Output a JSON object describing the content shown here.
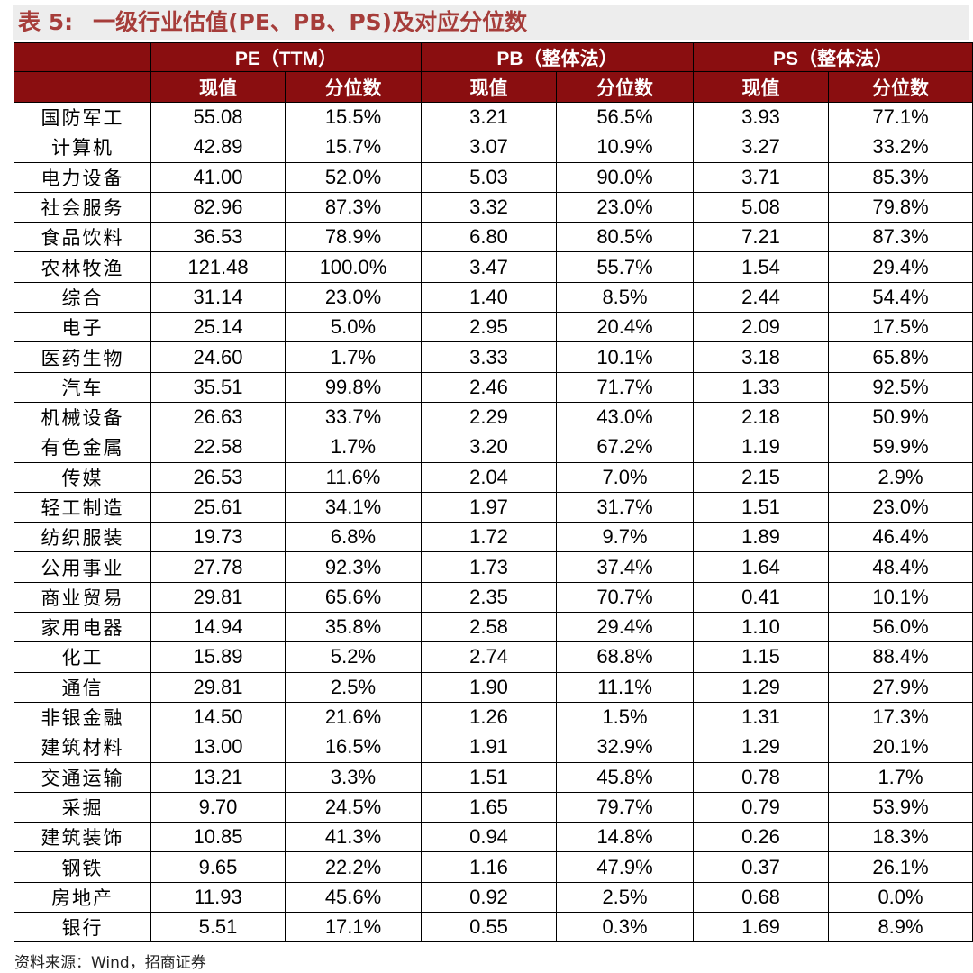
{
  "title": {
    "number": "表 5:",
    "text": "一级行业估值(PE、PB、PS)及对应分位数"
  },
  "headers": {
    "groups": [
      "PE（TTM）",
      "PB（整体法）",
      "PS（整体法）"
    ],
    "sub": [
      "现值",
      "分位数",
      "现值",
      "分位数",
      "现值",
      "分位数"
    ]
  },
  "rows": [
    {
      "industry": "国防军工",
      "pe": "55.08",
      "pe_pct": "15.5%",
      "pb": "3.21",
      "pb_pct": "56.5%",
      "ps": "3.93",
      "ps_pct": "77.1%"
    },
    {
      "industry": "计算机",
      "pe": "42.89",
      "pe_pct": "15.7%",
      "pb": "3.07",
      "pb_pct": "10.9%",
      "ps": "3.27",
      "ps_pct": "33.2%"
    },
    {
      "industry": "电力设备",
      "pe": "41.00",
      "pe_pct": "52.0%",
      "pb": "5.03",
      "pb_pct": "90.0%",
      "ps": "3.71",
      "ps_pct": "85.3%"
    },
    {
      "industry": "社会服务",
      "pe": "82.96",
      "pe_pct": "87.3%",
      "pb": "3.32",
      "pb_pct": "23.0%",
      "ps": "5.08",
      "ps_pct": "79.8%"
    },
    {
      "industry": "食品饮料",
      "pe": "36.53",
      "pe_pct": "78.9%",
      "pb": "6.80",
      "pb_pct": "80.5%",
      "ps": "7.21",
      "ps_pct": "87.3%"
    },
    {
      "industry": "农林牧渔",
      "pe": "121.48",
      "pe_pct": "100.0%",
      "pb": "3.47",
      "pb_pct": "55.7%",
      "ps": "1.54",
      "ps_pct": "29.4%"
    },
    {
      "industry": "综合",
      "pe": "31.14",
      "pe_pct": "23.0%",
      "pb": "1.40",
      "pb_pct": "8.5%",
      "ps": "2.44",
      "ps_pct": "54.4%"
    },
    {
      "industry": "电子",
      "pe": "25.14",
      "pe_pct": "5.0%",
      "pb": "2.95",
      "pb_pct": "20.4%",
      "ps": "2.09",
      "ps_pct": "17.5%"
    },
    {
      "industry": "医药生物",
      "pe": "24.60",
      "pe_pct": "1.7%",
      "pb": "3.33",
      "pb_pct": "10.1%",
      "ps": "3.18",
      "ps_pct": "65.8%"
    },
    {
      "industry": "汽车",
      "pe": "35.51",
      "pe_pct": "99.8%",
      "pb": "2.46",
      "pb_pct": "71.7%",
      "ps": "1.33",
      "ps_pct": "92.5%"
    },
    {
      "industry": "机械设备",
      "pe": "26.63",
      "pe_pct": "33.7%",
      "pb": "2.29",
      "pb_pct": "43.0%",
      "ps": "2.18",
      "ps_pct": "50.9%"
    },
    {
      "industry": "有色金属",
      "pe": "22.58",
      "pe_pct": "1.7%",
      "pb": "3.20",
      "pb_pct": "67.2%",
      "ps": "1.19",
      "ps_pct": "59.9%"
    },
    {
      "industry": "传媒",
      "pe": "26.53",
      "pe_pct": "11.6%",
      "pb": "2.04",
      "pb_pct": "7.0%",
      "ps": "2.15",
      "ps_pct": "2.9%"
    },
    {
      "industry": "轻工制造",
      "pe": "25.61",
      "pe_pct": "34.1%",
      "pb": "1.97",
      "pb_pct": "31.7%",
      "ps": "1.51",
      "ps_pct": "23.0%"
    },
    {
      "industry": "纺织服装",
      "pe": "19.73",
      "pe_pct": "6.8%",
      "pb": "1.72",
      "pb_pct": "9.7%",
      "ps": "1.89",
      "ps_pct": "46.4%"
    },
    {
      "industry": "公用事业",
      "pe": "27.78",
      "pe_pct": "92.3%",
      "pb": "1.73",
      "pb_pct": "37.4%",
      "ps": "1.64",
      "ps_pct": "48.4%"
    },
    {
      "industry": "商业贸易",
      "pe": "29.81",
      "pe_pct": "65.6%",
      "pb": "2.35",
      "pb_pct": "70.7%",
      "ps": "0.41",
      "ps_pct": "10.1%"
    },
    {
      "industry": "家用电器",
      "pe": "14.94",
      "pe_pct": "35.8%",
      "pb": "2.58",
      "pb_pct": "29.4%",
      "ps": "1.10",
      "ps_pct": "56.0%"
    },
    {
      "industry": "化工",
      "pe": "15.89",
      "pe_pct": "5.2%",
      "pb": "2.74",
      "pb_pct": "68.8%",
      "ps": "1.15",
      "ps_pct": "88.4%"
    },
    {
      "industry": "通信",
      "pe": "29.81",
      "pe_pct": "2.5%",
      "pb": "1.90",
      "pb_pct": "11.1%",
      "ps": "1.29",
      "ps_pct": "27.9%"
    },
    {
      "industry": "非银金融",
      "pe": "14.50",
      "pe_pct": "21.6%",
      "pb": "1.26",
      "pb_pct": "1.5%",
      "ps": "1.31",
      "ps_pct": "17.3%"
    },
    {
      "industry": "建筑材料",
      "pe": "13.00",
      "pe_pct": "16.5%",
      "pb": "1.91",
      "pb_pct": "32.9%",
      "ps": "1.29",
      "ps_pct": "20.1%"
    },
    {
      "industry": "交通运输",
      "pe": "13.21",
      "pe_pct": "3.3%",
      "pb": "1.51",
      "pb_pct": "45.8%",
      "ps": "0.78",
      "ps_pct": "1.7%"
    },
    {
      "industry": "采掘",
      "pe": "9.70",
      "pe_pct": "24.5%",
      "pb": "1.65",
      "pb_pct": "79.7%",
      "ps": "0.79",
      "ps_pct": "53.9%"
    },
    {
      "industry": "建筑装饰",
      "pe": "10.85",
      "pe_pct": "41.3%",
      "pb": "0.94",
      "pb_pct": "14.8%",
      "ps": "0.26",
      "ps_pct": "18.3%"
    },
    {
      "industry": "钢铁",
      "pe": "9.65",
      "pe_pct": "22.2%",
      "pb": "1.16",
      "pb_pct": "47.9%",
      "ps": "0.37",
      "ps_pct": "26.1%"
    },
    {
      "industry": "房地产",
      "pe": "11.93",
      "pe_pct": "45.6%",
      "pb": "0.92",
      "pb_pct": "2.5%",
      "ps": "0.68",
      "ps_pct": "0.0%"
    },
    {
      "industry": "银行",
      "pe": "5.51",
      "pe_pct": "17.1%",
      "pb": "0.55",
      "pb_pct": "0.3%",
      "ps": "1.69",
      "ps_pct": "8.9%"
    }
  ],
  "source": "资料来源：Wind，招商证券",
  "colors": {
    "title_text": "#a63d3a",
    "title_bg": "#ededed",
    "header_bg": "#8a0e10",
    "header_text": "#ffffff"
  }
}
